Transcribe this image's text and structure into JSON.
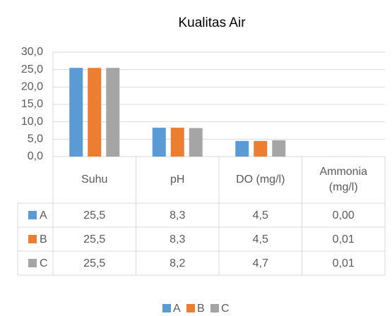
{
  "chart_data": {
    "type": "bar",
    "title": "Kualitas Air",
    "categories": [
      "Suhu",
      "pH",
      "DO (mg/l)",
      "Ammonia (mg/l)"
    ],
    "series": [
      {
        "name": "A",
        "color": "#5b9bd5",
        "values": [
          25.5,
          8.3,
          4.5,
          0.0
        ],
        "value_labels": [
          "25,5",
          "8,3",
          "4,5",
          "0,00"
        ]
      },
      {
        "name": "B",
        "color": "#ed7d31",
        "values": [
          25.5,
          8.3,
          4.5,
          0.01
        ],
        "value_labels": [
          "25,5",
          "8,3",
          "4,5",
          "0,01"
        ]
      },
      {
        "name": "C",
        "color": "#a5a5a5",
        "values": [
          25.5,
          8.2,
          4.7,
          0.01
        ],
        "value_labels": [
          "25,5",
          "8,2",
          "4,7",
          "0,01"
        ]
      }
    ],
    "ylim": [
      0,
      30
    ],
    "yticks": [
      {
        "value": 0,
        "label": "0,0"
      },
      {
        "value": 5,
        "label": "5,0"
      },
      {
        "value": 10,
        "label": "10,0"
      },
      {
        "value": 15,
        "label": "15,0"
      },
      {
        "value": 20,
        "label": "20,0"
      },
      {
        "value": 25,
        "label": "25,0"
      },
      {
        "value": 30,
        "label": "30,0"
      }
    ],
    "grid": true,
    "legend": "bottom"
  }
}
